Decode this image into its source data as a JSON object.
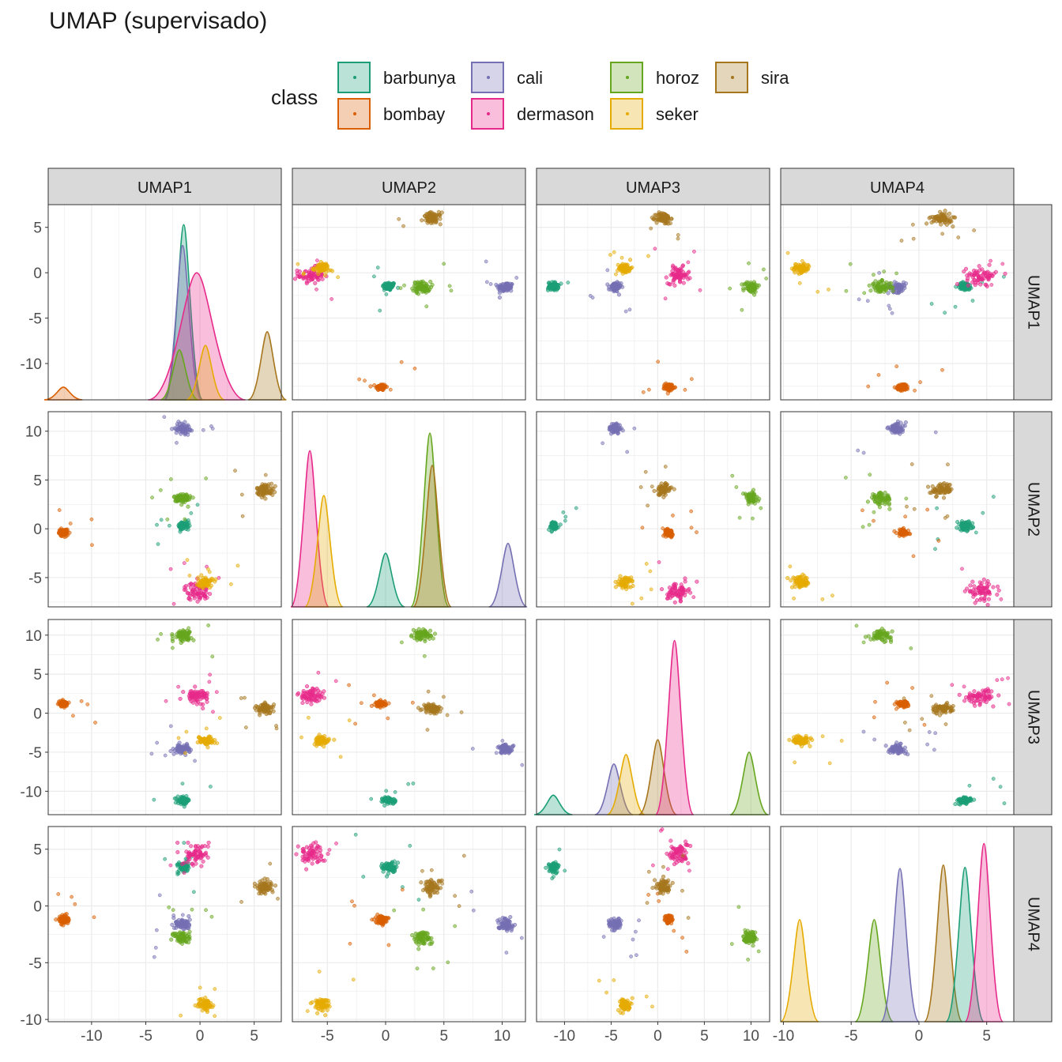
{
  "title": "UMAP (supervisado)",
  "legend": {
    "title": "class",
    "items": [
      {
        "label": "barbunya",
        "color": "#1B9E77"
      },
      {
        "label": "bombay",
        "color": "#D95F02"
      },
      {
        "label": "cali",
        "color": "#7570B3"
      },
      {
        "label": "dermason",
        "color": "#E7298A"
      },
      {
        "label": "horoz",
        "color": "#66A61E"
      },
      {
        "label": "seker",
        "color": "#E6AB02"
      },
      {
        "label": "sira",
        "color": "#A6761D"
      }
    ]
  },
  "chart_data": {
    "type": "scatter",
    "variables": [
      "UMAP1",
      "UMAP2",
      "UMAP3",
      "UMAP4"
    ],
    "axis_ranges": {
      "UMAP1": [
        -14,
        7.5
      ],
      "UMAP2": [
        -8,
        12
      ],
      "UMAP3": [
        -13,
        12
      ],
      "UMAP4": [
        -10.2,
        7
      ]
    },
    "axis_ticks": {
      "UMAP1": [
        "-10",
        "-5",
        "0",
        "5"
      ],
      "UMAP2": [
        "-5",
        "0",
        "5",
        "10"
      ],
      "UMAP3": [
        "-10",
        "-5",
        "0",
        "5",
        "10"
      ],
      "UMAP4": [
        "-10",
        "-5",
        "0",
        "5"
      ]
    },
    "clusters": [
      {
        "class": "barbunya",
        "center": {
          "UMAP1": -1.5,
          "UMAP2": 0.3,
          "UMAP3": -11.2,
          "UMAP4": 3.4
        },
        "spread": 0.25
      },
      {
        "class": "bombay",
        "center": {
          "UMAP1": -12.6,
          "UMAP2": -0.4,
          "UMAP3": 1.2,
          "UMAP4": -1.2
        },
        "spread": 0.2
      },
      {
        "class": "cali",
        "center": {
          "UMAP1": -1.6,
          "UMAP2": 10.3,
          "UMAP3": -4.6,
          "UMAP4": -1.6
        },
        "spread": 0.3
      },
      {
        "class": "dermason",
        "center": {
          "UMAP1": -0.3,
          "UMAP2": -6.4,
          "UMAP3": 2.2,
          "UMAP4": 4.6
        },
        "spread": 0.5
      },
      {
        "class": "horoz",
        "center": {
          "UMAP1": -1.6,
          "UMAP2": 3.1,
          "UMAP3": 10.0,
          "UMAP4": -2.8
        },
        "spread": 0.35
      },
      {
        "class": "seker",
        "center": {
          "UMAP1": 0.5,
          "UMAP2": -5.5,
          "UMAP3": -3.5,
          "UMAP4": -8.7
        },
        "spread": 0.3
      },
      {
        "class": "sira",
        "center": {
          "UMAP1": 6.0,
          "UMAP2": 4.0,
          "UMAP3": 0.6,
          "UMAP4": 1.7
        },
        "spread": 0.35
      }
    ],
    "density_peaks": {
      "UMAP1": [
        {
          "class": "bombay",
          "x": -12.6,
          "y": -12.6
        },
        {
          "class": "barbunya",
          "x": -1.5,
          "y": 5.3
        },
        {
          "class": "cali",
          "x": -1.6,
          "y": 3.0
        },
        {
          "class": "dermason",
          "x": -0.3,
          "y": 0.0
        },
        {
          "class": "horoz",
          "x": -1.9,
          "y": -8.5
        },
        {
          "class": "seker",
          "x": 0.5,
          "y": -8.0
        },
        {
          "class": "sira",
          "x": 6.2,
          "y": -6.5
        }
      ],
      "UMAP2": [
        {
          "class": "dermason",
          "x": -6.5,
          "y": 8.0
        },
        {
          "class": "seker",
          "x": -5.3,
          "y": 3.4
        },
        {
          "class": "barbunya",
          "x": 0.0,
          "y": -2.5
        },
        {
          "class": "horoz",
          "x": 3.8,
          "y": 9.8
        },
        {
          "class": "sira",
          "x": 4.0,
          "y": 6.5
        },
        {
          "class": "cali",
          "x": 10.5,
          "y": -1.5
        }
      ],
      "UMAP3": [
        {
          "class": "barbunya",
          "x": -11.2,
          "y": -10.5
        },
        {
          "class": "cali",
          "x": -4.7,
          "y": -6.5
        },
        {
          "class": "seker",
          "x": -3.4,
          "y": -5.3
        },
        {
          "class": "sira",
          "x": 0.0,
          "y": -3.4
        },
        {
          "class": "dermason",
          "x": 1.8,
          "y": 9.3
        },
        {
          "class": "horoz",
          "x": 9.8,
          "y": -5.0
        }
      ],
      "UMAP4": [
        {
          "class": "seker",
          "x": -8.8,
          "y": -1.2
        },
        {
          "class": "horoz",
          "x": -3.3,
          "y": -1.2
        },
        {
          "class": "cali",
          "x": -1.4,
          "y": 3.3
        },
        {
          "class": "sira",
          "x": 1.8,
          "y": 3.6
        },
        {
          "class": "barbunya",
          "x": 3.4,
          "y": 3.4
        },
        {
          "class": "dermason",
          "x": 4.8,
          "y": 5.5
        }
      ]
    }
  }
}
